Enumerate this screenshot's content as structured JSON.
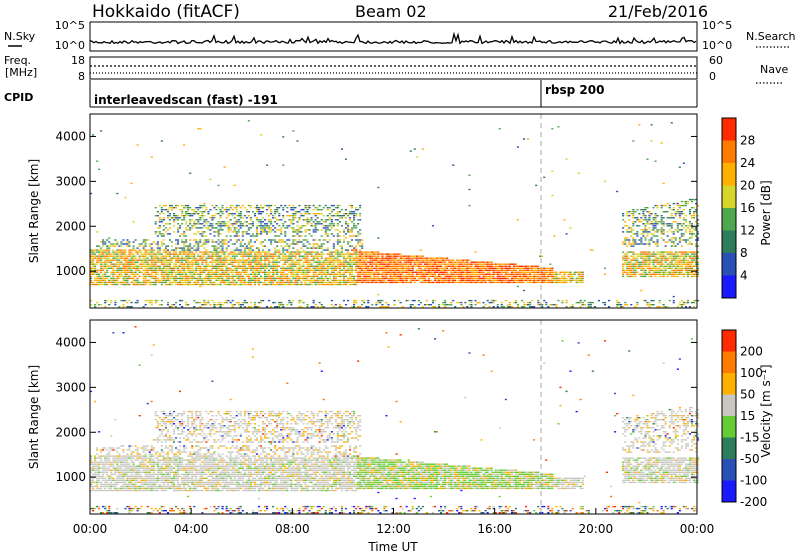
{
  "header": {
    "station": "Hokkaido (fitACF)",
    "beam": "Beam 02",
    "date": "21/Feb/2016"
  },
  "top_panel": {
    "left_label": "N.Sky",
    "left_ticks": [
      "10^5",
      "10^0"
    ],
    "right_label": "N.Search",
    "right_ticks": [
      "10^5",
      "10^0"
    ]
  },
  "freq_panel": {
    "left_label_1": "Freq.",
    "left_label_2": "[MHz]",
    "left_ticks": [
      "18",
      "8"
    ],
    "right_label": "Nave",
    "right_ticks": [
      "60",
      "0"
    ]
  },
  "cpid_panel": {
    "label": "CPID",
    "entries": [
      "interleavedscan (fast) -191",
      "rbsp 200"
    ]
  },
  "chart_data": [
    {
      "type": "heatmap",
      "name": "power",
      "ylabel": "Slant Range [km]",
      "ylim": [
        180,
        4500
      ],
      "yticks": [
        1000,
        2000,
        3000,
        4000
      ],
      "xlim": [
        "00:00",
        "24:00"
      ],
      "colorbar": {
        "label": "Power [dB]",
        "ticks": [
          "4",
          "8",
          "12",
          "16",
          "20",
          "24",
          "28"
        ],
        "colors": [
          "#1a1aff",
          "#2a4fb5",
          "#2e7d5a",
          "#4fa84f",
          "#d6d62a",
          "#ffb000",
          "#ff7a00",
          "#ff2a00"
        ]
      }
    },
    {
      "type": "heatmap",
      "name": "velocity",
      "ylabel": "Slant Range [km]",
      "ylim": [
        180,
        4500
      ],
      "yticks": [
        1000,
        2000,
        3000,
        4000
      ],
      "xlim": [
        "00:00",
        "24:00"
      ],
      "xlabel": "Time UT",
      "xticks": [
        "00:00",
        "04:00",
        "08:00",
        "12:00",
        "16:00",
        "20:00",
        "00:00"
      ],
      "colorbar": {
        "label": "Velocity [m s⁻¹]",
        "ticks": [
          "200",
          "100",
          "50",
          "15",
          "-15",
          "-50",
          "-100",
          "-200"
        ],
        "colors": [
          "#1a1aff",
          "#2a4fb5",
          "#2e7d5a",
          "#66cc33",
          "#c8c8c0",
          "#ffb000",
          "#ff7a00",
          "#ff2a00"
        ]
      }
    }
  ]
}
